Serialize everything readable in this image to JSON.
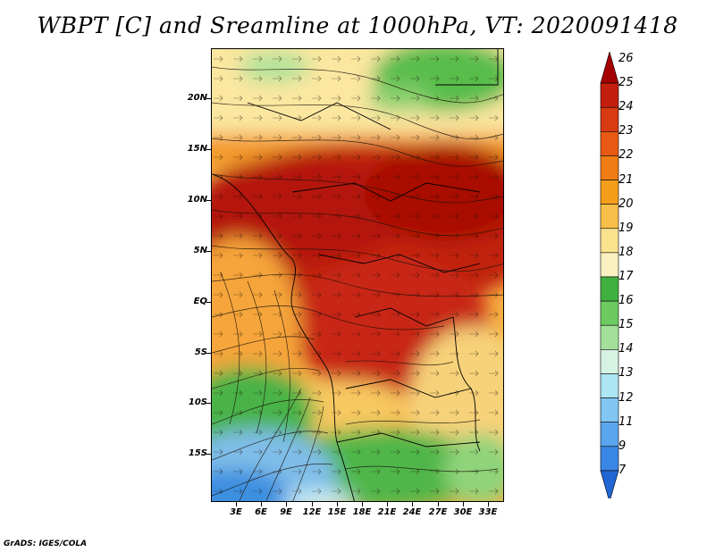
{
  "title": "WBPT [C] and Sreamline at 1000hPa, VT: 2020091418",
  "footer": "GrADS: IGES/COLA",
  "lat_labels": [
    "20N",
    "15N",
    "10N",
    "5N",
    "EQ",
    "5S",
    "10S",
    "15S"
  ],
  "lon_labels": [
    "3E",
    "6E",
    "9E",
    "12E",
    "15E",
    "18E",
    "21E",
    "24E",
    "27E",
    "30E",
    "33E"
  ],
  "colorbar": {
    "labels": [
      "26",
      "25",
      "24",
      "23",
      "22",
      "21",
      "20",
      "19",
      "18",
      "17",
      "16",
      "15",
      "14",
      "13",
      "12",
      "11",
      "9",
      "7"
    ],
    "colors": [
      "#a50000",
      "#c41e0e",
      "#d83a12",
      "#e85a14",
      "#f07c14",
      "#f59e1c",
      "#f8c04a",
      "#fbe28e",
      "#fbf0c0",
      "#3fb040",
      "#6cca60",
      "#a4e09a",
      "#d6f2e2",
      "#ace6f2",
      "#82c6f4",
      "#5aa6ee",
      "#3a86e4",
      "#2266d4"
    ]
  }
}
